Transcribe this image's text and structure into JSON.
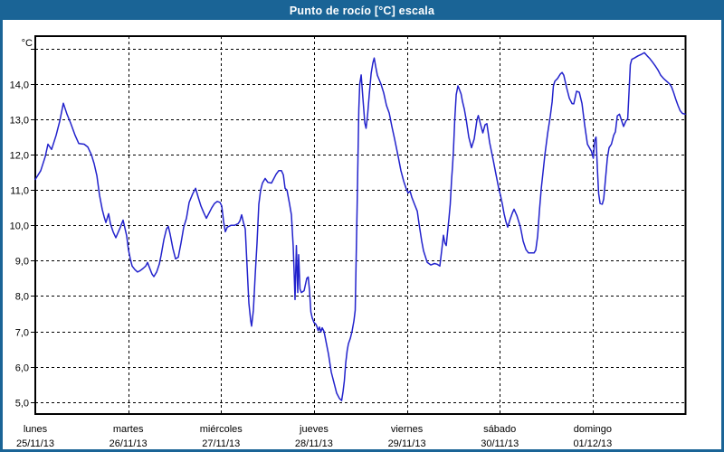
{
  "window": {
    "title": "Punto de rocío [°C] escala"
  },
  "colors": {
    "titlebar_bg": "#1a6496",
    "window_border": "#1a6496",
    "plot_bg": "#ffffff",
    "grid": "#000000",
    "axis_text": "#000000",
    "line": "#2222cc"
  },
  "chart_data": {
    "type": "line",
    "title": "Punto de rocío [°C] escala",
    "ylabel": "°C",
    "xlabel": "",
    "grid": "dashed",
    "legend": "none",
    "ylim": [
      4.66,
      15.36
    ],
    "y_gridlines": [
      {
        "value": 15,
        "label": ""
      },
      {
        "value": 14,
        "label": "14,0"
      },
      {
        "value": 13,
        "label": "13,0"
      },
      {
        "value": 12,
        "label": "12,0"
      },
      {
        "value": 11,
        "label": "11,0"
      },
      {
        "value": 10,
        "label": "10,0"
      },
      {
        "value": 9,
        "label": "9,0"
      },
      {
        "value": 8,
        "label": "8,0"
      },
      {
        "value": 7,
        "label": "7,0"
      },
      {
        "value": 6,
        "label": "6,0"
      },
      {
        "value": 5,
        "label": "5,0"
      }
    ],
    "x_days": [
      {
        "name": "lunes",
        "date": "25/11/13"
      },
      {
        "name": "martes",
        "date": "26/11/13"
      },
      {
        "name": "miércoles",
        "date": "27/11/13"
      },
      {
        "name": "jueves",
        "date": "28/11/13"
      },
      {
        "name": "viernes",
        "date": "29/11/13"
      },
      {
        "name": "sábado",
        "date": "30/11/13"
      },
      {
        "name": "domingo",
        "date": "01/12/13"
      }
    ],
    "series": [
      {
        "name": "punto-de-rocio",
        "color": "#2222cc",
        "points": [
          [
            0.0,
            11.3
          ],
          [
            0.058,
            11.55
          ],
          [
            0.107,
            11.95
          ],
          [
            0.136,
            12.3
          ],
          [
            0.175,
            12.15
          ],
          [
            0.224,
            12.55
          ],
          [
            0.263,
            12.95
          ],
          [
            0.302,
            13.46
          ],
          [
            0.341,
            13.15
          ],
          [
            0.38,
            12.9
          ],
          [
            0.429,
            12.55
          ],
          [
            0.468,
            12.32
          ],
          [
            0.526,
            12.3
          ],
          [
            0.565,
            12.22
          ],
          [
            0.604,
            12.0
          ],
          [
            0.633,
            11.75
          ],
          [
            0.663,
            11.4
          ],
          [
            0.692,
            10.85
          ],
          [
            0.721,
            10.45
          ],
          [
            0.74,
            10.25
          ],
          [
            0.76,
            10.08
          ],
          [
            0.789,
            10.33
          ],
          [
            0.809,
            10.05
          ],
          [
            0.838,
            9.82
          ],
          [
            0.867,
            9.65
          ],
          [
            0.916,
            9.95
          ],
          [
            0.945,
            10.15
          ],
          [
            0.984,
            9.7
          ],
          [
            1.003,
            9.3
          ],
          [
            1.023,
            9.05
          ],
          [
            1.042,
            8.85
          ],
          [
            1.072,
            8.75
          ],
          [
            1.101,
            8.68
          ],
          [
            1.13,
            8.72
          ],
          [
            1.159,
            8.78
          ],
          [
            1.189,
            8.85
          ],
          [
            1.208,
            8.95
          ],
          [
            1.237,
            8.75
          ],
          [
            1.257,
            8.62
          ],
          [
            1.276,
            8.55
          ],
          [
            1.306,
            8.68
          ],
          [
            1.335,
            8.9
          ],
          [
            1.354,
            9.15
          ],
          [
            1.384,
            9.6
          ],
          [
            1.413,
            9.9
          ],
          [
            1.432,
            9.97
          ],
          [
            1.452,
            9.75
          ],
          [
            1.481,
            9.35
          ],
          [
            1.51,
            9.05
          ],
          [
            1.539,
            9.1
          ],
          [
            1.569,
            9.5
          ],
          [
            1.598,
            9.95
          ],
          [
            1.627,
            10.2
          ],
          [
            1.656,
            10.65
          ],
          [
            1.695,
            10.9
          ],
          [
            1.725,
            11.05
          ],
          [
            1.754,
            10.8
          ],
          [
            1.783,
            10.55
          ],
          [
            1.812,
            10.37
          ],
          [
            1.841,
            10.2
          ],
          [
            1.871,
            10.35
          ],
          [
            1.9,
            10.5
          ],
          [
            1.929,
            10.62
          ],
          [
            1.958,
            10.68
          ],
          [
            1.988,
            10.65
          ],
          [
            2.007,
            10.55
          ],
          [
            2.027,
            10.1
          ],
          [
            2.046,
            9.82
          ],
          [
            2.066,
            9.95
          ],
          [
            2.105,
            10.0
          ],
          [
            2.144,
            10.0
          ],
          [
            2.183,
            10.05
          ],
          [
            2.202,
            10.12
          ],
          [
            2.221,
            10.3
          ],
          [
            2.241,
            10.08
          ],
          [
            2.26,
            9.9
          ],
          [
            2.28,
            8.85
          ],
          [
            2.299,
            7.8
          ],
          [
            2.319,
            7.3
          ],
          [
            2.328,
            7.15
          ],
          [
            2.348,
            7.6
          ],
          [
            2.367,
            8.6
          ],
          [
            2.387,
            9.5
          ],
          [
            2.406,
            10.6
          ],
          [
            2.426,
            11.0
          ],
          [
            2.445,
            11.2
          ],
          [
            2.475,
            11.33
          ],
          [
            2.504,
            11.22
          ],
          [
            2.543,
            11.2
          ],
          [
            2.592,
            11.45
          ],
          [
            2.621,
            11.55
          ],
          [
            2.65,
            11.55
          ],
          [
            2.67,
            11.43
          ],
          [
            2.689,
            11.05
          ],
          [
            2.709,
            11.0
          ],
          [
            2.738,
            10.6
          ],
          [
            2.757,
            10.3
          ],
          [
            2.777,
            9.4
          ],
          [
            2.787,
            8.6
          ],
          [
            2.796,
            7.9
          ],
          [
            2.811,
            9.43
          ],
          [
            2.825,
            8.1
          ],
          [
            2.835,
            9.17
          ],
          [
            2.85,
            8.2
          ],
          [
            2.864,
            8.1
          ],
          [
            2.894,
            8.15
          ],
          [
            2.923,
            8.5
          ],
          [
            2.938,
            8.54
          ],
          [
            2.952,
            8.15
          ],
          [
            2.967,
            7.55
          ],
          [
            2.981,
            7.38
          ],
          [
            3.001,
            7.25
          ],
          [
            3.02,
            7.2
          ],
          [
            3.03,
            7.15
          ],
          [
            3.045,
            7.02
          ],
          [
            3.059,
            7.12
          ],
          [
            3.074,
            6.98
          ],
          [
            3.088,
            7.1
          ],
          [
            3.108,
            7.0
          ],
          [
            3.127,
            6.74
          ],
          [
            3.157,
            6.35
          ],
          [
            3.186,
            5.85
          ],
          [
            3.215,
            5.55
          ],
          [
            3.244,
            5.25
          ],
          [
            3.274,
            5.1
          ],
          [
            3.298,
            5.04
          ],
          [
            3.313,
            5.3
          ],
          [
            3.327,
            5.6
          ],
          [
            3.342,
            6.1
          ],
          [
            3.357,
            6.45
          ],
          [
            3.371,
            6.65
          ],
          [
            3.391,
            6.8
          ],
          [
            3.41,
            7.0
          ],
          [
            3.43,
            7.3
          ],
          [
            3.444,
            7.6
          ],
          [
            3.454,
            9.0
          ],
          [
            3.464,
            10.5
          ],
          [
            3.474,
            12.0
          ],
          [
            3.483,
            13.3
          ],
          [
            3.493,
            14.0
          ],
          [
            3.508,
            14.26
          ],
          [
            3.527,
            13.6
          ],
          [
            3.547,
            12.9
          ],
          [
            3.561,
            12.75
          ],
          [
            3.576,
            13.1
          ],
          [
            3.595,
            13.7
          ],
          [
            3.615,
            14.3
          ],
          [
            3.634,
            14.6
          ],
          [
            3.649,
            14.74
          ],
          [
            3.664,
            14.5
          ],
          [
            3.683,
            14.25
          ],
          [
            3.703,
            14.12
          ],
          [
            3.722,
            14.0
          ],
          [
            3.751,
            13.75
          ],
          [
            3.78,
            13.4
          ],
          [
            3.81,
            13.18
          ],
          [
            3.839,
            12.8
          ],
          [
            3.868,
            12.45
          ],
          [
            3.907,
            11.95
          ],
          [
            3.936,
            11.55
          ],
          [
            3.966,
            11.25
          ],
          [
            3.995,
            11.02
          ],
          [
            4.014,
            10.92
          ],
          [
            4.034,
            10.97
          ],
          [
            4.053,
            10.8
          ],
          [
            4.082,
            10.6
          ],
          [
            4.112,
            10.4
          ],
          [
            4.131,
            10.05
          ],
          [
            4.16,
            9.55
          ],
          [
            4.18,
            9.28
          ],
          [
            4.219,
            8.95
          ],
          [
            4.258,
            8.88
          ],
          [
            4.297,
            8.92
          ],
          [
            4.326,
            8.9
          ],
          [
            4.355,
            8.85
          ],
          [
            4.375,
            9.3
          ],
          [
            4.394,
            9.72
          ],
          [
            4.409,
            9.5
          ],
          [
            4.424,
            9.43
          ],
          [
            4.438,
            9.8
          ],
          [
            4.453,
            10.2
          ],
          [
            4.467,
            10.6
          ],
          [
            4.482,
            11.3
          ],
          [
            4.492,
            11.7
          ],
          [
            4.501,
            12.1
          ],
          [
            4.516,
            13.0
          ],
          [
            4.531,
            13.7
          ],
          [
            4.55,
            13.95
          ],
          [
            4.565,
            13.85
          ],
          [
            4.584,
            13.72
          ],
          [
            4.599,
            13.5
          ],
          [
            4.618,
            13.3
          ],
          [
            4.638,
            13.0
          ],
          [
            4.667,
            12.5
          ],
          [
            4.696,
            12.2
          ],
          [
            4.725,
            12.45
          ],
          [
            4.755,
            13.0
          ],
          [
            4.769,
            13.11
          ],
          [
            4.794,
            12.85
          ],
          [
            4.818,
            12.62
          ],
          [
            4.842,
            12.85
          ],
          [
            4.862,
            12.88
          ],
          [
            4.891,
            12.35
          ],
          [
            4.93,
            11.85
          ],
          [
            4.959,
            11.45
          ],
          [
            4.989,
            11.05
          ],
          [
            5.008,
            10.85
          ],
          [
            5.028,
            10.6
          ],
          [
            5.047,
            10.33
          ],
          [
            5.067,
            10.1
          ],
          [
            5.086,
            9.95
          ],
          [
            5.11,
            10.16
          ],
          [
            5.135,
            10.35
          ],
          [
            5.154,
            10.46
          ],
          [
            5.184,
            10.28
          ],
          [
            5.223,
            9.95
          ],
          [
            5.252,
            9.55
          ],
          [
            5.281,
            9.32
          ],
          [
            5.31,
            9.22
          ],
          [
            5.369,
            9.22
          ],
          [
            5.388,
            9.3
          ],
          [
            5.408,
            9.7
          ],
          [
            5.427,
            10.4
          ],
          [
            5.447,
            11.05
          ],
          [
            5.466,
            11.5
          ],
          [
            5.486,
            12.0
          ],
          [
            5.515,
            12.6
          ],
          [
            5.544,
            13.1
          ],
          [
            5.564,
            13.5
          ],
          [
            5.578,
            13.95
          ],
          [
            5.593,
            14.08
          ],
          [
            5.622,
            14.16
          ],
          [
            5.651,
            14.28
          ],
          [
            5.671,
            14.33
          ],
          [
            5.69,
            14.25
          ],
          [
            5.72,
            13.9
          ],
          [
            5.749,
            13.6
          ],
          [
            5.778,
            13.45
          ],
          [
            5.797,
            13.44
          ],
          [
            5.827,
            13.8
          ],
          [
            5.856,
            13.77
          ],
          [
            5.885,
            13.45
          ],
          [
            5.914,
            12.85
          ],
          [
            5.944,
            12.3
          ],
          [
            5.973,
            12.16
          ],
          [
            5.987,
            12.1
          ],
          [
            6.007,
            11.9
          ],
          [
            6.021,
            12.4
          ],
          [
            6.036,
            12.5
          ],
          [
            6.051,
            11.6
          ],
          [
            6.065,
            10.9
          ],
          [
            6.08,
            10.62
          ],
          [
            6.104,
            10.6
          ],
          [
            6.119,
            10.75
          ],
          [
            6.138,
            11.3
          ],
          [
            6.158,
            11.9
          ],
          [
            6.177,
            12.2
          ],
          [
            6.202,
            12.3
          ],
          [
            6.226,
            12.55
          ],
          [
            6.245,
            12.65
          ],
          [
            6.265,
            13.1
          ],
          [
            6.289,
            13.15
          ],
          [
            6.314,
            12.95
          ],
          [
            6.333,
            12.8
          ],
          [
            6.357,
            12.95
          ],
          [
            6.377,
            13.02
          ],
          [
            6.392,
            13.8
          ],
          [
            6.406,
            14.55
          ],
          [
            6.421,
            14.7
          ],
          [
            6.45,
            14.74
          ],
          [
            6.489,
            14.8
          ],
          [
            6.528,
            14.85
          ],
          [
            6.557,
            14.89
          ],
          [
            6.587,
            14.8
          ],
          [
            6.616,
            14.72
          ],
          [
            6.645,
            14.62
          ],
          [
            6.674,
            14.52
          ],
          [
            6.703,
            14.4
          ],
          [
            6.733,
            14.25
          ],
          [
            6.767,
            14.15
          ],
          [
            6.801,
            14.07
          ],
          [
            6.83,
            14.0
          ],
          [
            6.85,
            13.92
          ],
          [
            6.869,
            13.78
          ],
          [
            6.894,
            13.58
          ],
          [
            6.918,
            13.4
          ],
          [
            6.942,
            13.25
          ],
          [
            6.967,
            13.17
          ],
          [
            6.996,
            13.15
          ]
        ]
      }
    ]
  }
}
